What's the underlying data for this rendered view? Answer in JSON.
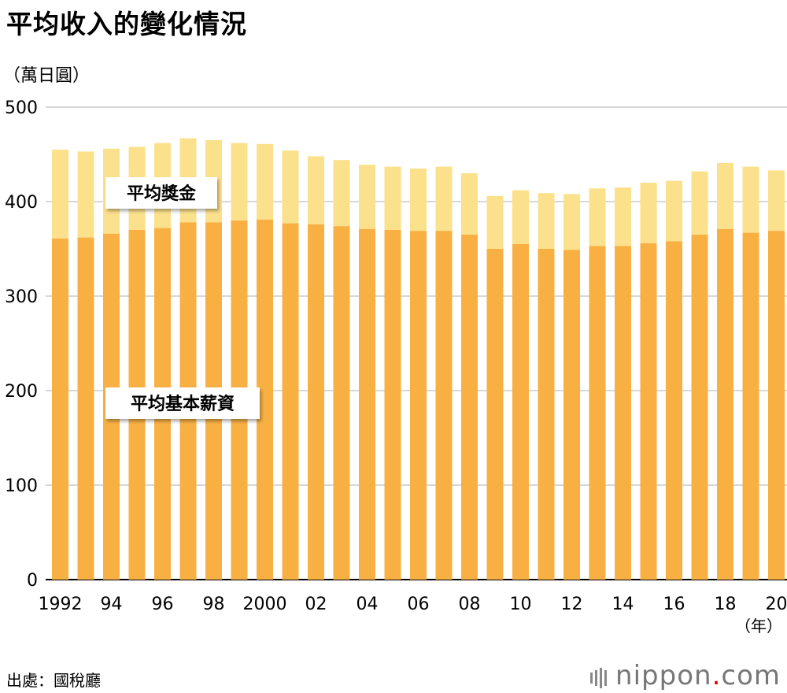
{
  "title": "平均收入的變化情況",
  "unit_label": "（萬日圓）",
  "year_unit_label": "（年）",
  "source": "出處：國稅廳",
  "brand": {
    "name": "nippon",
    "dot": ".",
    "suffix": "com"
  },
  "colors": {
    "base": "#f8b043",
    "bonus": "#fce18c",
    "grid": "#cccccc",
    "axis": "#000000"
  },
  "chart_data": {
    "type": "bar",
    "stacked": true,
    "title": "平均收入的變化情況",
    "ylabel": "萬日圓",
    "xlabel": "年",
    "ylim": [
      0,
      500
    ],
    "yticks": [
      0,
      100,
      200,
      300,
      400,
      500
    ],
    "x": [
      1992,
      1993,
      1994,
      1995,
      1996,
      1997,
      1998,
      1999,
      2000,
      2001,
      2002,
      2003,
      2004,
      2005,
      2006,
      2007,
      2008,
      2009,
      2010,
      2011,
      2012,
      2013,
      2014,
      2015,
      2016,
      2017,
      2018,
      2019,
      2020
    ],
    "tick_labels": [
      "1992",
      "",
      "94",
      "",
      "96",
      "",
      "98",
      "",
      "2000",
      "",
      "02",
      "",
      "04",
      "",
      "06",
      "",
      "08",
      "",
      "10",
      "",
      "12",
      "",
      "14",
      "",
      "16",
      "",
      "18",
      "",
      "20"
    ],
    "series": [
      {
        "name": "平均基本薪資",
        "values": [
          361,
          362,
          366,
          370,
          372,
          378,
          378,
          380,
          381,
          377,
          376,
          374,
          371,
          370,
          369,
          369,
          365,
          350,
          355,
          350,
          349,
          353,
          353,
          356,
          358,
          365,
          371,
          367,
          369
        ]
      },
      {
        "name": "平均獎金",
        "values": [
          94,
          91,
          90,
          88,
          90,
          89,
          87,
          82,
          80,
          77,
          72,
          70,
          68,
          67,
          66,
          68,
          65,
          56,
          57,
          59,
          59,
          61,
          62,
          64,
          64,
          67,
          70,
          70,
          64
        ]
      }
    ],
    "annotations": [
      "平均獎金",
      "平均基本薪資"
    ]
  }
}
